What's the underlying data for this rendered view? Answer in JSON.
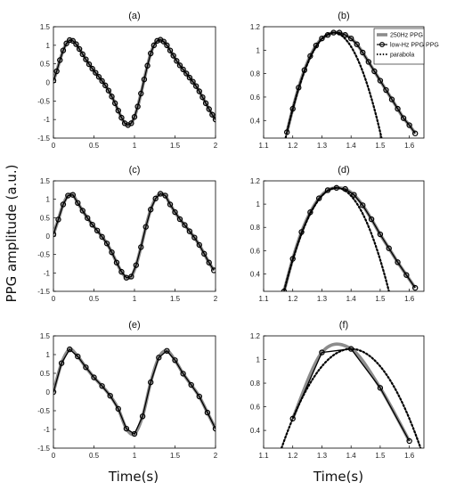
{
  "figure": {
    "ylabel": "PPG amplitude (a.u.)",
    "xlabel_left": "Time(s)",
    "xlabel_right": "Time(s)"
  },
  "legend": {
    "entries": [
      "250Hz PPG",
      "low-Hz PPG PPG",
      "parabola"
    ]
  },
  "colors": {
    "ref": "#8c8c8c",
    "sampled": "#000000",
    "parabola": "#000000"
  },
  "chart_data": [
    {
      "type": "line",
      "title": "(a)",
      "xlim": [
        0,
        2
      ],
      "ylim": [
        -1.5,
        1.5
      ],
      "xticks": [
        "0",
        "0.5",
        "1",
        "1.5",
        "2"
      ],
      "yticks": [
        "-1.5",
        "-1",
        "-0.5",
        "0",
        "0.5",
        "1",
        "1.5"
      ],
      "series": [
        {
          "x": [
            0,
            0.04,
            0.08,
            0.12,
            0.16,
            0.2,
            0.24,
            0.28,
            0.32,
            0.36,
            0.4,
            0.44,
            0.48,
            0.52,
            0.56,
            0.6,
            0.64,
            0.68,
            0.72,
            0.76,
            0.8,
            0.84,
            0.88,
            0.92,
            0.96,
            1.0,
            1.04,
            1.08,
            1.12,
            1.16,
            1.2,
            1.24,
            1.28,
            1.32,
            1.36,
            1.4,
            1.44,
            1.48,
            1.52,
            1.56,
            1.6,
            1.64,
            1.68,
            1.72,
            1.76,
            1.8,
            1.84,
            1.88,
            1.92,
            1.96,
            2.0
          ],
          "y": [
            0.05,
            0.3,
            0.6,
            0.86,
            1.05,
            1.14,
            1.12,
            1.03,
            0.9,
            0.76,
            0.62,
            0.49,
            0.37,
            0.26,
            0.15,
            0.04,
            -0.08,
            -0.22,
            -0.38,
            -0.56,
            -0.76,
            -0.95,
            -1.1,
            -1.15,
            -1.1,
            -0.93,
            -0.65,
            -0.3,
            0.08,
            0.45,
            0.78,
            1.0,
            1.12,
            1.15,
            1.1,
            1.0,
            0.86,
            0.72,
            0.58,
            0.46,
            0.35,
            0.24,
            0.13,
            0.02,
            -0.1,
            -0.24,
            -0.4,
            -0.56,
            -0.72,
            -0.87,
            -1.0
          ]
        }
      ]
    },
    {
      "type": "line",
      "title": "(b)",
      "xlim": [
        1.1,
        1.65
      ],
      "ylim": [
        0.25,
        1.2
      ],
      "xticks": [
        "1.1",
        "1.2",
        "1.3",
        "1.4",
        "1.5",
        "1.6"
      ],
      "yticks": [
        "0.4",
        "0.6",
        "0.8",
        "1",
        "1.2"
      ],
      "series": [
        {
          "x": [
            1.18,
            1.2,
            1.22,
            1.24,
            1.26,
            1.28,
            1.3,
            1.32,
            1.34,
            1.36,
            1.38,
            1.4,
            1.42,
            1.44,
            1.46,
            1.48,
            1.5,
            1.52,
            1.54,
            1.56,
            1.58,
            1.6,
            1.62
          ],
          "y": [
            0.3,
            0.5,
            0.68,
            0.83,
            0.95,
            1.04,
            1.1,
            1.13,
            1.15,
            1.15,
            1.13,
            1.1,
            1.05,
            0.98,
            0.9,
            0.82,
            0.74,
            0.66,
            0.58,
            0.5,
            0.42,
            0.36,
            0.29
          ]
        }
      ]
    },
    {
      "type": "line",
      "title": "(c)",
      "xlim": [
        0,
        2
      ],
      "ylim": [
        -1.5,
        1.5
      ],
      "xticks": [
        "0",
        "0.5",
        "1",
        "1.5",
        "2"
      ],
      "yticks": [
        "-1.5",
        "-1",
        "-0.5",
        "0",
        "0.5",
        "1",
        "1.5"
      ],
      "series": [
        {
          "x": [
            0,
            0.06,
            0.12,
            0.18,
            0.24,
            0.3,
            0.36,
            0.42,
            0.48,
            0.54,
            0.6,
            0.66,
            0.72,
            0.78,
            0.84,
            0.9,
            0.96,
            1.02,
            1.08,
            1.14,
            1.2,
            1.26,
            1.32,
            1.38,
            1.44,
            1.5,
            1.56,
            1.62,
            1.68,
            1.74,
            1.8,
            1.86,
            1.92,
            1.98
          ],
          "y": [
            0.05,
            0.45,
            0.86,
            1.1,
            1.12,
            0.9,
            0.69,
            0.49,
            0.31,
            0.15,
            -0.02,
            -0.2,
            -0.44,
            -0.72,
            -0.97,
            -1.13,
            -1.1,
            -0.79,
            -0.3,
            0.25,
            0.72,
            1.02,
            1.15,
            1.1,
            0.86,
            0.65,
            0.46,
            0.3,
            0.13,
            -0.04,
            -0.24,
            -0.48,
            -0.72,
            -0.93
          ]
        }
      ]
    },
    {
      "type": "line",
      "title": "(d)",
      "xlim": [
        1.1,
        1.65
      ],
      "ylim": [
        0.25,
        1.2
      ],
      "xticks": [
        "1.1",
        "1.2",
        "1.3",
        "1.4",
        "1.5",
        "1.6"
      ],
      "yticks": [
        "0.4",
        "0.6",
        "0.8",
        "1",
        "1.2"
      ],
      "series": [
        {
          "x": [
            1.17,
            1.2,
            1.23,
            1.26,
            1.29,
            1.32,
            1.35,
            1.38,
            1.41,
            1.44,
            1.47,
            1.5,
            1.53,
            1.56,
            1.59,
            1.62
          ],
          "y": [
            0.25,
            0.53,
            0.76,
            0.93,
            1.05,
            1.12,
            1.14,
            1.13,
            1.08,
            0.99,
            0.87,
            0.74,
            0.62,
            0.5,
            0.39,
            0.28
          ]
        }
      ]
    },
    {
      "type": "line",
      "title": "(e)",
      "xlim": [
        0,
        2
      ],
      "ylim": [
        -1.5,
        1.5
      ],
      "xticks": [
        "0",
        "0.5",
        "1",
        "1.5",
        "2"
      ],
      "yticks": [
        "-1.5",
        "-1",
        "-0.5",
        "0",
        "0.5",
        "1",
        "1.5"
      ],
      "series": [
        {
          "x": [
            0,
            0.1,
            0.2,
            0.3,
            0.4,
            0.5,
            0.6,
            0.7,
            0.8,
            0.9,
            1.0,
            1.1,
            1.2,
            1.3,
            1.4,
            1.5,
            1.6,
            1.7,
            1.8,
            1.9,
            2.0
          ],
          "y": [
            0.0,
            0.77,
            1.14,
            0.95,
            0.66,
            0.39,
            0.16,
            -0.1,
            -0.45,
            -0.98,
            -1.12,
            -0.65,
            0.26,
            0.92,
            1.1,
            0.85,
            0.49,
            0.19,
            -0.12,
            -0.55,
            -0.98
          ]
        }
      ]
    },
    {
      "type": "line",
      "title": "(f)",
      "xlim": [
        1.1,
        1.65
      ],
      "ylim": [
        0.25,
        1.2
      ],
      "xticks": [
        "1.1",
        "1.2",
        "1.3",
        "1.4",
        "1.5",
        "1.6"
      ],
      "yticks": [
        "0.4",
        "0.6",
        "0.8",
        "1",
        "1.2"
      ],
      "series": [
        {
          "x": [
            1.2,
            1.3,
            1.4,
            1.5,
            1.6
          ],
          "y": [
            0.5,
            1.06,
            1.09,
            0.76,
            0.31
          ]
        }
      ]
    }
  ]
}
